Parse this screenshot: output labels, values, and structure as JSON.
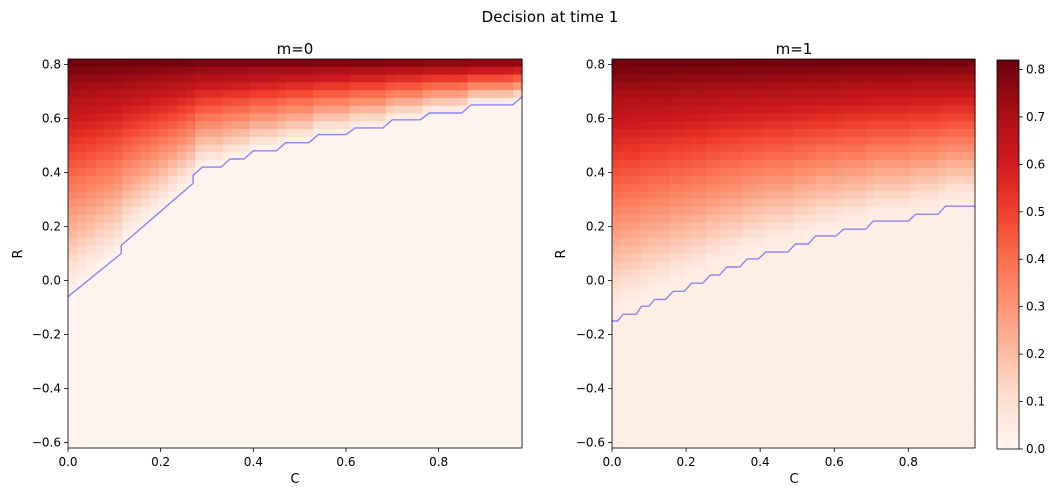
{
  "suptitle": "Decision at time 1",
  "colorbar": {
    "colormap": "Reds",
    "vmin": 0.0,
    "vmax": 0.82,
    "ticks": [
      0.0,
      0.1,
      0.2,
      0.3,
      0.4,
      0.5,
      0.6,
      0.7,
      0.8
    ],
    "tick_labels": [
      "0.0",
      "0.1",
      "0.2",
      "0.3",
      "0.4",
      "0.5",
      "0.6",
      "0.7",
      "0.8"
    ],
    "colors": [
      "#fff5f0",
      "#fee0d2",
      "#fcbba1",
      "#fc9272",
      "#fb6a4a",
      "#ef3b2c",
      "#cb181d",
      "#a50f15",
      "#67000d"
    ]
  },
  "chart_data": [
    {
      "type": "heatmap",
      "title": "m=0",
      "xlabel": "C",
      "ylabel": "R",
      "xlim": [
        0.0,
        0.98
      ],
      "ylim": [
        -0.62,
        0.82
      ],
      "x_ticks": [
        0.0,
        0.2,
        0.4,
        0.6,
        0.8
      ],
      "x_tick_labels": [
        "0.0",
        "0.2",
        "0.4",
        "0.6",
        "0.8"
      ],
      "y_ticks": [
        -0.6,
        -0.4,
        -0.2,
        0.0,
        0.2,
        0.4,
        0.6,
        0.8
      ],
      "y_tick_labels": [
        "−0.6",
        "−0.4",
        "−0.2",
        "0.0",
        "0.2",
        "0.4",
        "0.6",
        "0.8"
      ],
      "grid": false,
      "value_model": "value = max(R - boundary(C), 0) * 0.82 / (0.82 - boundary(C)) for cells above the boundary, else 0.01",
      "boundary_line": {
        "color": "#8c87f0",
        "points": [
          [
            0.0,
            -0.06
          ],
          [
            0.115,
            0.1
          ],
          [
            0.115,
            0.13
          ],
          [
            0.27,
            0.36
          ],
          [
            0.27,
            0.39
          ],
          [
            0.29,
            0.42
          ],
          [
            0.33,
            0.42
          ],
          [
            0.35,
            0.45
          ],
          [
            0.38,
            0.45
          ],
          [
            0.4,
            0.48
          ],
          [
            0.45,
            0.48
          ],
          [
            0.47,
            0.51
          ],
          [
            0.52,
            0.51
          ],
          [
            0.54,
            0.54
          ],
          [
            0.6,
            0.54
          ],
          [
            0.62,
            0.565
          ],
          [
            0.68,
            0.565
          ],
          [
            0.7,
            0.595
          ],
          [
            0.76,
            0.595
          ],
          [
            0.78,
            0.62
          ],
          [
            0.85,
            0.62
          ],
          [
            0.87,
            0.65
          ],
          [
            0.96,
            0.65
          ],
          [
            0.98,
            0.68
          ]
        ]
      }
    },
    {
      "type": "heatmap",
      "title": "m=1",
      "xlabel": "C",
      "ylabel": "R",
      "xlim": [
        0.0,
        0.98
      ],
      "ylim": [
        -0.62,
        0.82
      ],
      "x_ticks": [
        0.0,
        0.2,
        0.4,
        0.6,
        0.8
      ],
      "x_tick_labels": [
        "0.0",
        "0.2",
        "0.4",
        "0.6",
        "0.8"
      ],
      "y_ticks": [
        -0.6,
        -0.4,
        -0.2,
        0.0,
        0.2,
        0.4,
        0.6,
        0.8
      ],
      "y_tick_labels": [
        "−0.6",
        "−0.4",
        "−0.2",
        "0.0",
        "0.2",
        "0.4",
        "0.6",
        "0.8"
      ],
      "grid": false,
      "value_model": "value = max(R - boundary(C), 0) * 0.82 / (0.82 - boundary(C)) for cells above the boundary, else 0.01",
      "boundary_line": {
        "color": "#8c87f0",
        "points": [
          [
            0.0,
            -0.15
          ],
          [
            0.015,
            -0.15
          ],
          [
            0.03,
            -0.125
          ],
          [
            0.065,
            -0.125
          ],
          [
            0.08,
            -0.095
          ],
          [
            0.1,
            -0.095
          ],
          [
            0.115,
            -0.07
          ],
          [
            0.145,
            -0.07
          ],
          [
            0.165,
            -0.04
          ],
          [
            0.195,
            -0.04
          ],
          [
            0.215,
            -0.01
          ],
          [
            0.245,
            -0.01
          ],
          [
            0.265,
            0.02
          ],
          [
            0.29,
            0.02
          ],
          [
            0.31,
            0.05
          ],
          [
            0.345,
            0.05
          ],
          [
            0.365,
            0.08
          ],
          [
            0.395,
            0.08
          ],
          [
            0.415,
            0.105
          ],
          [
            0.475,
            0.105
          ],
          [
            0.495,
            0.135
          ],
          [
            0.53,
            0.135
          ],
          [
            0.55,
            0.165
          ],
          [
            0.605,
            0.165
          ],
          [
            0.625,
            0.19
          ],
          [
            0.685,
            0.19
          ],
          [
            0.705,
            0.22
          ],
          [
            0.8,
            0.22
          ],
          [
            0.82,
            0.245
          ],
          [
            0.88,
            0.245
          ],
          [
            0.9,
            0.275
          ],
          [
            0.98,
            0.275
          ]
        ]
      }
    }
  ]
}
